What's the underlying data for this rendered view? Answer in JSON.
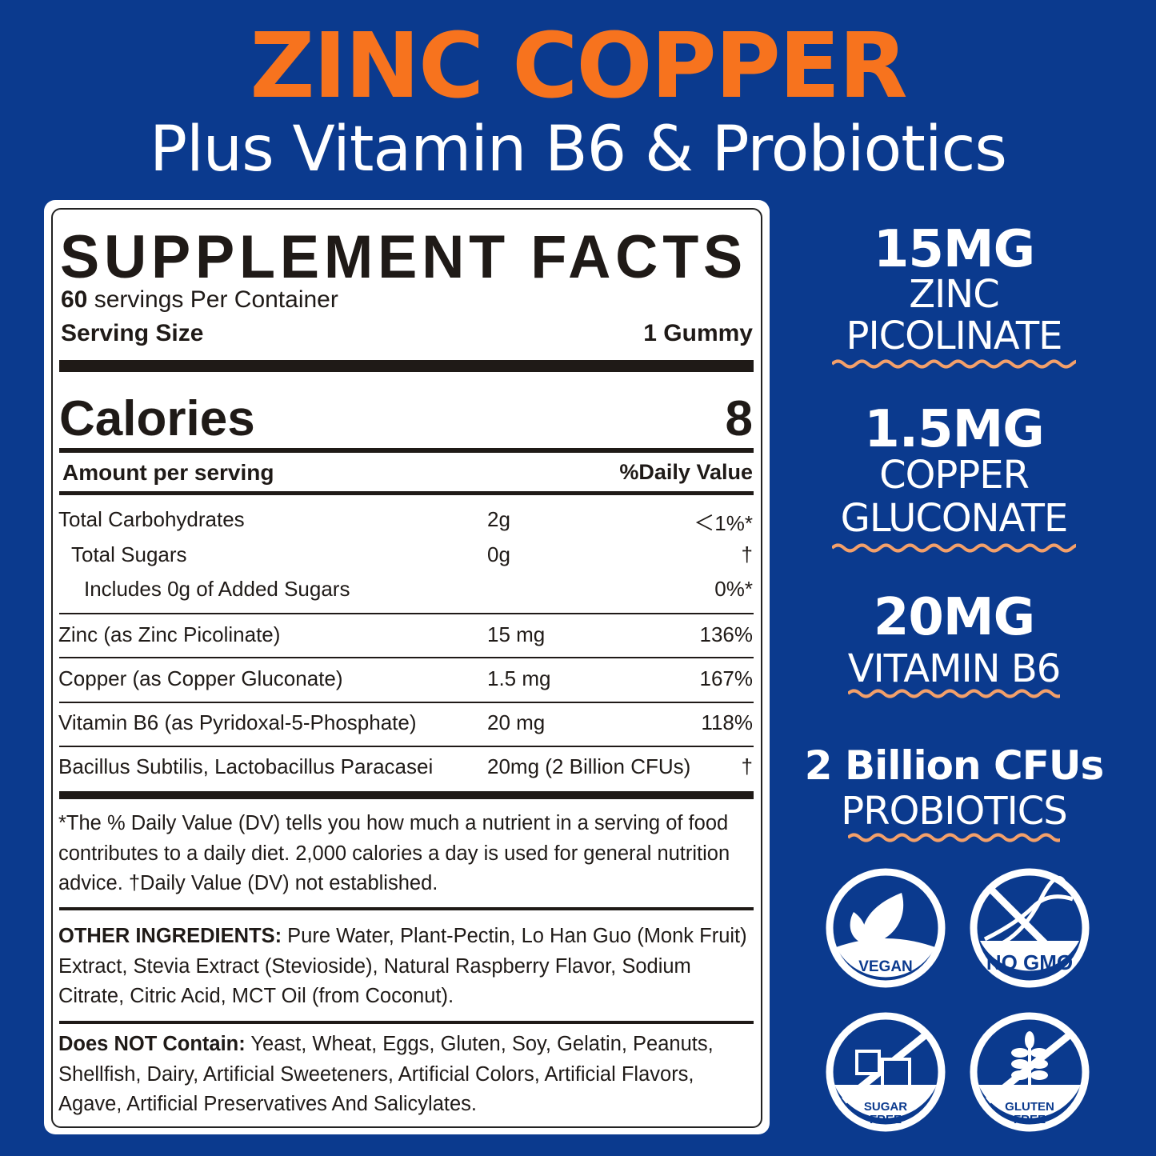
{
  "header": {
    "title": "ZINC COPPER",
    "subtitle": "Plus Vitamin B6 & Probiotics"
  },
  "facts": {
    "title": "SUPPLEMENT FACTS",
    "servings_count": "60",
    "servings_text": " servings Per Container",
    "serving_size_label": "Serving Size",
    "serving_size_value": "1 Gummy",
    "calories_label": "Calories",
    "calories_value": "8",
    "amount_header": "Amount per serving",
    "dv_header": "%Daily Value",
    "rows": [
      {
        "name": "Total Carbohydrates",
        "amount": "2g",
        "dv": "＜1%*"
      },
      {
        "name": "Total Sugars",
        "amount": "0g",
        "dv": "†"
      },
      {
        "name": "Includes 0g of Added Sugars",
        "amount": "",
        "dv": "0%*"
      },
      {
        "name": "Zinc (as Zinc Picolinate)",
        "amount": "15 mg",
        "dv": "136%"
      },
      {
        "name": "Copper (as Copper Gluconate)",
        "amount": "1.5 mg",
        "dv": "167%"
      },
      {
        "name": "Vitamin B6 (as Pyridoxal-5-Phosphate)",
        "amount": "20 mg",
        "dv": "118%"
      },
      {
        "name": "Bacillus Subtilis, Lactobacillus Paracasei",
        "amount": "20mg (2 Billion CFUs)",
        "dv": "†"
      }
    ],
    "footnote": "*The % Daily Value (DV) tells you how much a nutrient in a serving of food contributes to a daily diet. 2,000 calories a day is used for general nutrition advice. †Daily Value (DV) not established.",
    "other_label": "OTHER INGREDIENTS:",
    "other_text": " Pure Water, Plant-Pectin, Lo Han Guo (Monk Fruit) Extract, Stevia Extract (Stevioside), Natural Raspberry Flavor, Sodium Citrate, Citric Acid,  MCT Oil (from Coconut).",
    "not_label": "Does NOT Contain:",
    "not_text": " Yeast, Wheat, Eggs, Gluten, Soy, Gelatin, Peanuts, Shellfish, Dairy, Artificial Sweeteners, Artificial Colors, Artificial Flavors, Agave, Artificial Preservatives And Salicylates."
  },
  "highlights": [
    {
      "amount": "15MG",
      "line1": "ZINC",
      "line2": "PICOLINATE"
    },
    {
      "amount": "1.5MG",
      "line1": "COPPER",
      "line2": "GLUCONATE"
    },
    {
      "amount": "20MG",
      "line1": "VITAMIN B6"
    },
    {
      "amount": "2 Billion CFUs",
      "line1": "PROBIOTICS"
    }
  ],
  "badges": [
    {
      "icon": "leaf-icon",
      "line1": "VEGAN"
    },
    {
      "icon": "dna-crossed-icon",
      "line1": "NO GMO"
    },
    {
      "icon": "sugar-cube-crossed-icon",
      "line1": "SUGAR",
      "line2": "FREE"
    },
    {
      "icon": "wheat-crossed-icon",
      "line1": "GLUTEN",
      "line2": "FREE"
    }
  ],
  "colors": {
    "background": "#0b3a8e",
    "accent": "#f7731e",
    "wave": "#f4a06a",
    "text": "#1f1a17"
  }
}
